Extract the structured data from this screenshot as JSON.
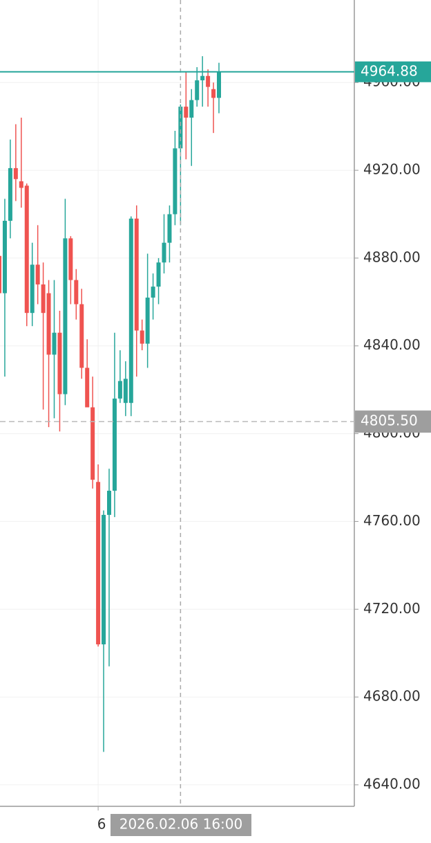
{
  "chart_data": {
    "type": "candlestick",
    "up_color": "#26a69a",
    "down_color": "#ef5350",
    "grid": true,
    "categories": [
      null,
      null,
      null,
      null,
      null,
      null,
      null,
      null,
      null,
      null,
      null,
      null,
      null,
      null,
      null,
      null,
      null,
      null,
      "6",
      null,
      null,
      null,
      null,
      null,
      null,
      null,
      null,
      null,
      null,
      null,
      null,
      null,
      null,
      null,
      null,
      null,
      null,
      null,
      null,
      null,
      null
    ],
    "open": [
      4881,
      4864,
      4897,
      4921,
      4915,
      4913,
      4855,
      4877,
      4868,
      4864,
      4836,
      4846,
      4818,
      4889,
      4870,
      4859,
      4830,
      4812,
      4778,
      4704,
      4763,
      4774,
      4816,
      4814,
      4814,
      4898,
      4847,
      4841,
      4862,
      4867,
      4878,
      4887,
      4900,
      4930,
      4949,
      4944,
      4952,
      4961,
      4963,
      4957,
      4953
    ],
    "high": [
      4884,
      4907,
      4934,
      4941,
      4944,
      4914,
      4887,
      4895,
      4878,
      4870,
      4870,
      4856,
      4907,
      4890,
      4875,
      4866,
      4843,
      4826,
      4786,
      4765,
      4784,
      4846,
      4838,
      4833,
      4899,
      4904,
      4852,
      4882,
      4873,
      4880,
      4900,
      4904,
      4938,
      4950,
      4965,
      4957,
      4967,
      4972,
      4966,
      4960,
      4969
    ],
    "low": [
      4862,
      4826,
      4889,
      4906,
      4903,
      4849,
      4849,
      4859,
      4811,
      4803,
      4807,
      4801,
      4813,
      4859,
      4852,
      4825,
      4812,
      4775,
      4703,
      4655,
      4694,
      4762,
      4814,
      4808,
      4808,
      4826,
      4838,
      4830,
      4852,
      4859,
      4873,
      4878,
      4895,
      4895,
      4925,
      4922,
      4949,
      4949,
      4949,
      4937,
      4946
    ],
    "close": [
      4864,
      4897,
      4921,
      4916,
      4912,
      4855,
      4877,
      4868,
      4855,
      4836,
      4846,
      4818,
      4889,
      4870,
      4859,
      4830,
      4812,
      4779,
      4704,
      4763,
      4774,
      4816,
      4824,
      4825,
      4898,
      4847,
      4841,
      4862,
      4867,
      4878,
      4887,
      4900,
      4930,
      4949,
      4944,
      4952,
      4961,
      4963,
      4958,
      4953,
      4964.88
    ],
    "ylim": [
      4630.2,
      4997.6
    ],
    "yticks": [
      {
        "value": 4640,
        "label": "4640.00"
      },
      {
        "value": 4680,
        "label": "4680.00"
      },
      {
        "value": 4720,
        "label": "4720.00"
      },
      {
        "value": 4760,
        "label": "4760.00"
      },
      {
        "value": 4800,
        "label": "4800.00"
      },
      {
        "value": 4840,
        "label": "4840.00"
      },
      {
        "value": 4880,
        "label": "4880.00"
      },
      {
        "value": 4920,
        "label": "4920.00"
      },
      {
        "value": 4960,
        "label": "4960.00"
      }
    ],
    "last_price": {
      "value": 4964.88,
      "label": "4964.88"
    },
    "crosshair": {
      "index": 33,
      "x_label": "2026.02.06 16:00",
      "price": 4805.5,
      "price_label": "4805.50"
    }
  }
}
